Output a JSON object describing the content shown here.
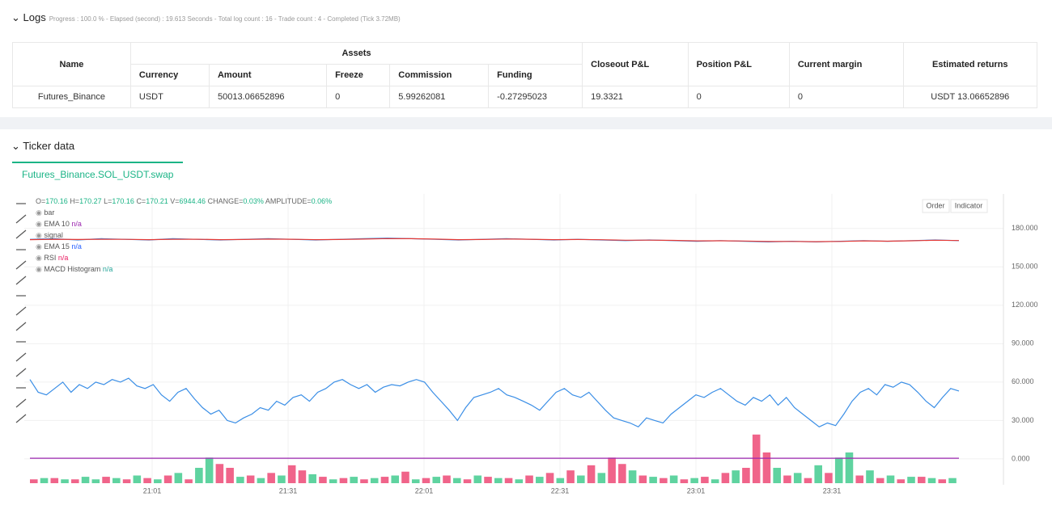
{
  "logs": {
    "title": "Logs",
    "summary": "Progress : 100.0 % - Elapsed (second) : 19.613 Seconds - Total log count : 16 - Trade count : 4 - Completed (Tick 3.72MB)"
  },
  "table": {
    "group_headers": [
      "Name",
      "Assets",
      "Closeout P&L",
      "Position P&L",
      "Current margin",
      "Estimated returns"
    ],
    "sub_headers": [
      "Currency",
      "Amount",
      "Freeze",
      "Commission",
      "Funding"
    ],
    "rows": [
      [
        "Futures_Binance",
        "USDT",
        "50013.06652896",
        "0",
        "5.99262081",
        "-0.27295023",
        "19.3321",
        "0",
        "0",
        "USDT 13.06652896"
      ]
    ]
  },
  "ticker": {
    "title": "Ticker data",
    "tab": "Futures_Binance.SOL_USDT.swap",
    "buttons": [
      "Order",
      "Indicator"
    ],
    "ohlc": [
      [
        "O=",
        "170.16"
      ],
      [
        "H=",
        "170.27"
      ],
      [
        "L=",
        "170.16"
      ],
      [
        "C=",
        "170.21"
      ],
      [
        "V=",
        "6944.46"
      ],
      [
        "CHANGE=",
        "0.03%"
      ],
      [
        "AMPLITUDE=",
        "0.06%"
      ]
    ],
    "legend": [
      {
        "name": "bar"
      },
      {
        "name": "EMA 10",
        "value": "n/a",
        "color": "#9c27b0"
      },
      {
        "name": "signal"
      },
      {
        "name": "EMA 15",
        "value": "n/a",
        "color": "#2962ff"
      },
      {
        "name": "RSI",
        "value": "n/a",
        "color": "#e91e63"
      },
      {
        "name": "MACD Histogram",
        "value": "n/a",
        "color": "#26a69a"
      }
    ]
  },
  "chart_data": {
    "type": "line",
    "ylim": [
      -19,
      207
    ],
    "yticks": [
      {
        "value": 180,
        "label": "180.000"
      },
      {
        "value": 150,
        "label": "150.000"
      },
      {
        "value": 120,
        "label": "120.000"
      },
      {
        "value": 90,
        "label": "90.000"
      },
      {
        "value": 60,
        "label": "60.000"
      },
      {
        "value": 30,
        "label": "30.000"
      },
      {
        "value": 0,
        "label": "0.000"
      }
    ],
    "xticks": [
      "21:01",
      "21:31",
      "22:01",
      "22:31",
      "23:01",
      "23:31"
    ],
    "grid": true,
    "price": [
      {
        "color": "#3a8ee6",
        "values": [
          171.5,
          172,
          171,
          172,
          171.5,
          171,
          172,
          171.5,
          171,
          171.5,
          172,
          171.5,
          171,
          171.5,
          172,
          172.5,
          172,
          171.5,
          171,
          171.5,
          172,
          171.5,
          171,
          171.5,
          171,
          170.5,
          171,
          170.5,
          170,
          170.5,
          170,
          169.5,
          170,
          169.5,
          170,
          170.5,
          170,
          170.5,
          171,
          170.5
        ]
      },
      {
        "color": "#e53935",
        "values": [
          171.3,
          171.6,
          171.4,
          171.6,
          171.5,
          171.3,
          171.6,
          171.6,
          171.3,
          171.4,
          171.7,
          171.6,
          171.3,
          171.4,
          171.7,
          172.1,
          172,
          171.7,
          171.3,
          171.4,
          171.8,
          171.6,
          171.3,
          171.4,
          171.2,
          170.8,
          170.9,
          170.7,
          170.3,
          170.4,
          170.2,
          169.8,
          169.9,
          169.7,
          169.9,
          170.3,
          170.1,
          170.4,
          170.8,
          170.6
        ]
      }
    ],
    "rsi": {
      "color": "#3a8ee6",
      "values": [
        62,
        52,
        50,
        55,
        60,
        52,
        58,
        55,
        60,
        58,
        62,
        60,
        63,
        57,
        55,
        58,
        50,
        45,
        52,
        55,
        47,
        40,
        35,
        38,
        30,
        28,
        32,
        35,
        40,
        38,
        45,
        42,
        48,
        50,
        45,
        52,
        55,
        60,
        62,
        58,
        55,
        58,
        52,
        56,
        58,
        57,
        60,
        62,
        60,
        52,
        45,
        38,
        30,
        40,
        48,
        50,
        52,
        55,
        50,
        48,
        45,
        42,
        38,
        45,
        52,
        55,
        50,
        48,
        52,
        45,
        38,
        32,
        30,
        28,
        25,
        32,
        30,
        28,
        35,
        40,
        45,
        50,
        48,
        52,
        55,
        50,
        45,
        42,
        48,
        45,
        50,
        42,
        48,
        40,
        35,
        30,
        25,
        28,
        26,
        35,
        45,
        52,
        55,
        50,
        58,
        56,
        60,
        58,
        52,
        45,
        40,
        48,
        55,
        53
      ]
    },
    "level": {
      "color": "#9c27b0",
      "values": [
        0.5,
        0.5,
        0.5,
        0.5,
        0.5,
        0.5,
        0.5,
        0.5,
        0.5,
        0.5
      ]
    },
    "bars": [
      {
        "color": "#f0648a",
        "values": [
          3,
          null,
          4,
          null,
          3,
          null,
          null,
          5,
          null,
          3,
          null,
          4,
          null,
          6,
          null,
          3,
          null,
          null,
          15,
          12,
          null,
          6,
          null,
          8,
          null,
          14,
          10,
          null,
          5,
          null,
          4,
          null,
          3,
          null,
          5,
          null,
          9,
          null,
          4,
          null,
          6,
          null,
          3,
          null,
          5,
          null,
          4,
          null,
          6,
          null,
          8,
          null,
          10,
          null,
          14,
          null,
          20,
          15,
          null,
          6,
          null,
          4,
          null,
          3,
          null,
          5,
          null,
          8,
          null,
          12,
          38,
          24,
          null,
          6,
          null,
          4,
          null,
          8,
          null,
          null,
          6,
          null,
          4,
          null,
          3,
          null,
          5,
          null,
          3,
          null
        ]
      },
      {
        "color": "#5fd3a0",
        "values": [
          null,
          4,
          null,
          3,
          null,
          5,
          3,
          null,
          4,
          null,
          6,
          null,
          3,
          null,
          8,
          null,
          12,
          20,
          null,
          null,
          5,
          null,
          4,
          null,
          6,
          null,
          null,
          7,
          null,
          3,
          null,
          5,
          null,
          4,
          null,
          6,
          null,
          3,
          null,
          5,
          null,
          4,
          null,
          6,
          null,
          4,
          null,
          3,
          null,
          5,
          null,
          4,
          null,
          6,
          null,
          8,
          null,
          null,
          10,
          null,
          5,
          null,
          6,
          null,
          4,
          null,
          3,
          null,
          10,
          null,
          null,
          null,
          12,
          null,
          8,
          null,
          14,
          null,
          20,
          24,
          null,
          10,
          null,
          6,
          null,
          5,
          null,
          4,
          null,
          4
        ]
      }
    ]
  }
}
